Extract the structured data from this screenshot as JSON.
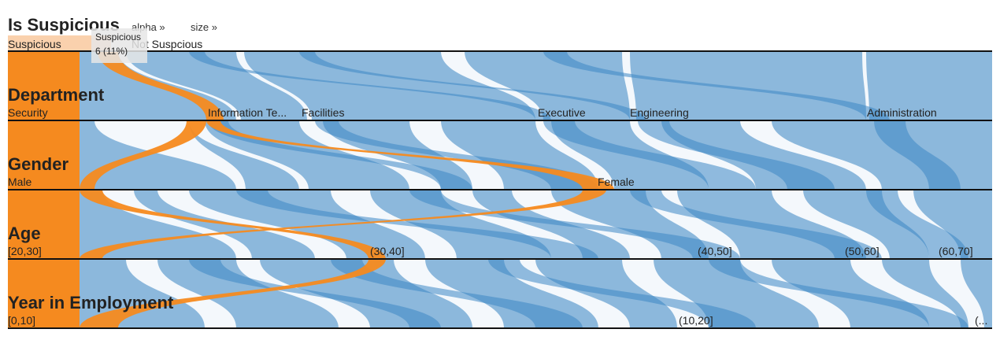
{
  "controls": {
    "alpha_label": "alpha »",
    "size_label": "size »"
  },
  "tooltip": {
    "title": "Suspicious",
    "value": "6 (11%)"
  },
  "colors": {
    "suspicious": "#f58a1f",
    "not_suspicious": "#6fa6d3",
    "not_suspicious_dark": "#3c86c4",
    "selected_bar": "#fad1ad",
    "axis": "#111111"
  },
  "chart_data": {
    "type": "parallel-sets",
    "total": 56,
    "dimensions": [
      {
        "name": "Is Suspicious",
        "categories": [
          "Suspicious",
          "Not Suspcious"
        ]
      },
      {
        "name": "Department",
        "categories": [
          "Security",
          "Information Te...",
          "Facilities",
          "Executive",
          "Engineering",
          "Administration"
        ]
      },
      {
        "name": "Gender",
        "categories": [
          "Male",
          "Female"
        ]
      },
      {
        "name": "Age",
        "categories": [
          "[20,30]",
          "(30,40]",
          "(40,50]",
          "(50,60]",
          "(60,70]"
        ]
      },
      {
        "name": "Year in Employment",
        "categories": [
          "[0,10]",
          "(10,20]",
          "(..."
        ]
      }
    ],
    "series": [
      {
        "name": "Suspicious",
        "count": 6
      },
      {
        "name": "Not Suspcious",
        "count": 50
      }
    ],
    "highlighted": {
      "category": "Suspicious",
      "count": 6,
      "percent": "11%"
    }
  }
}
